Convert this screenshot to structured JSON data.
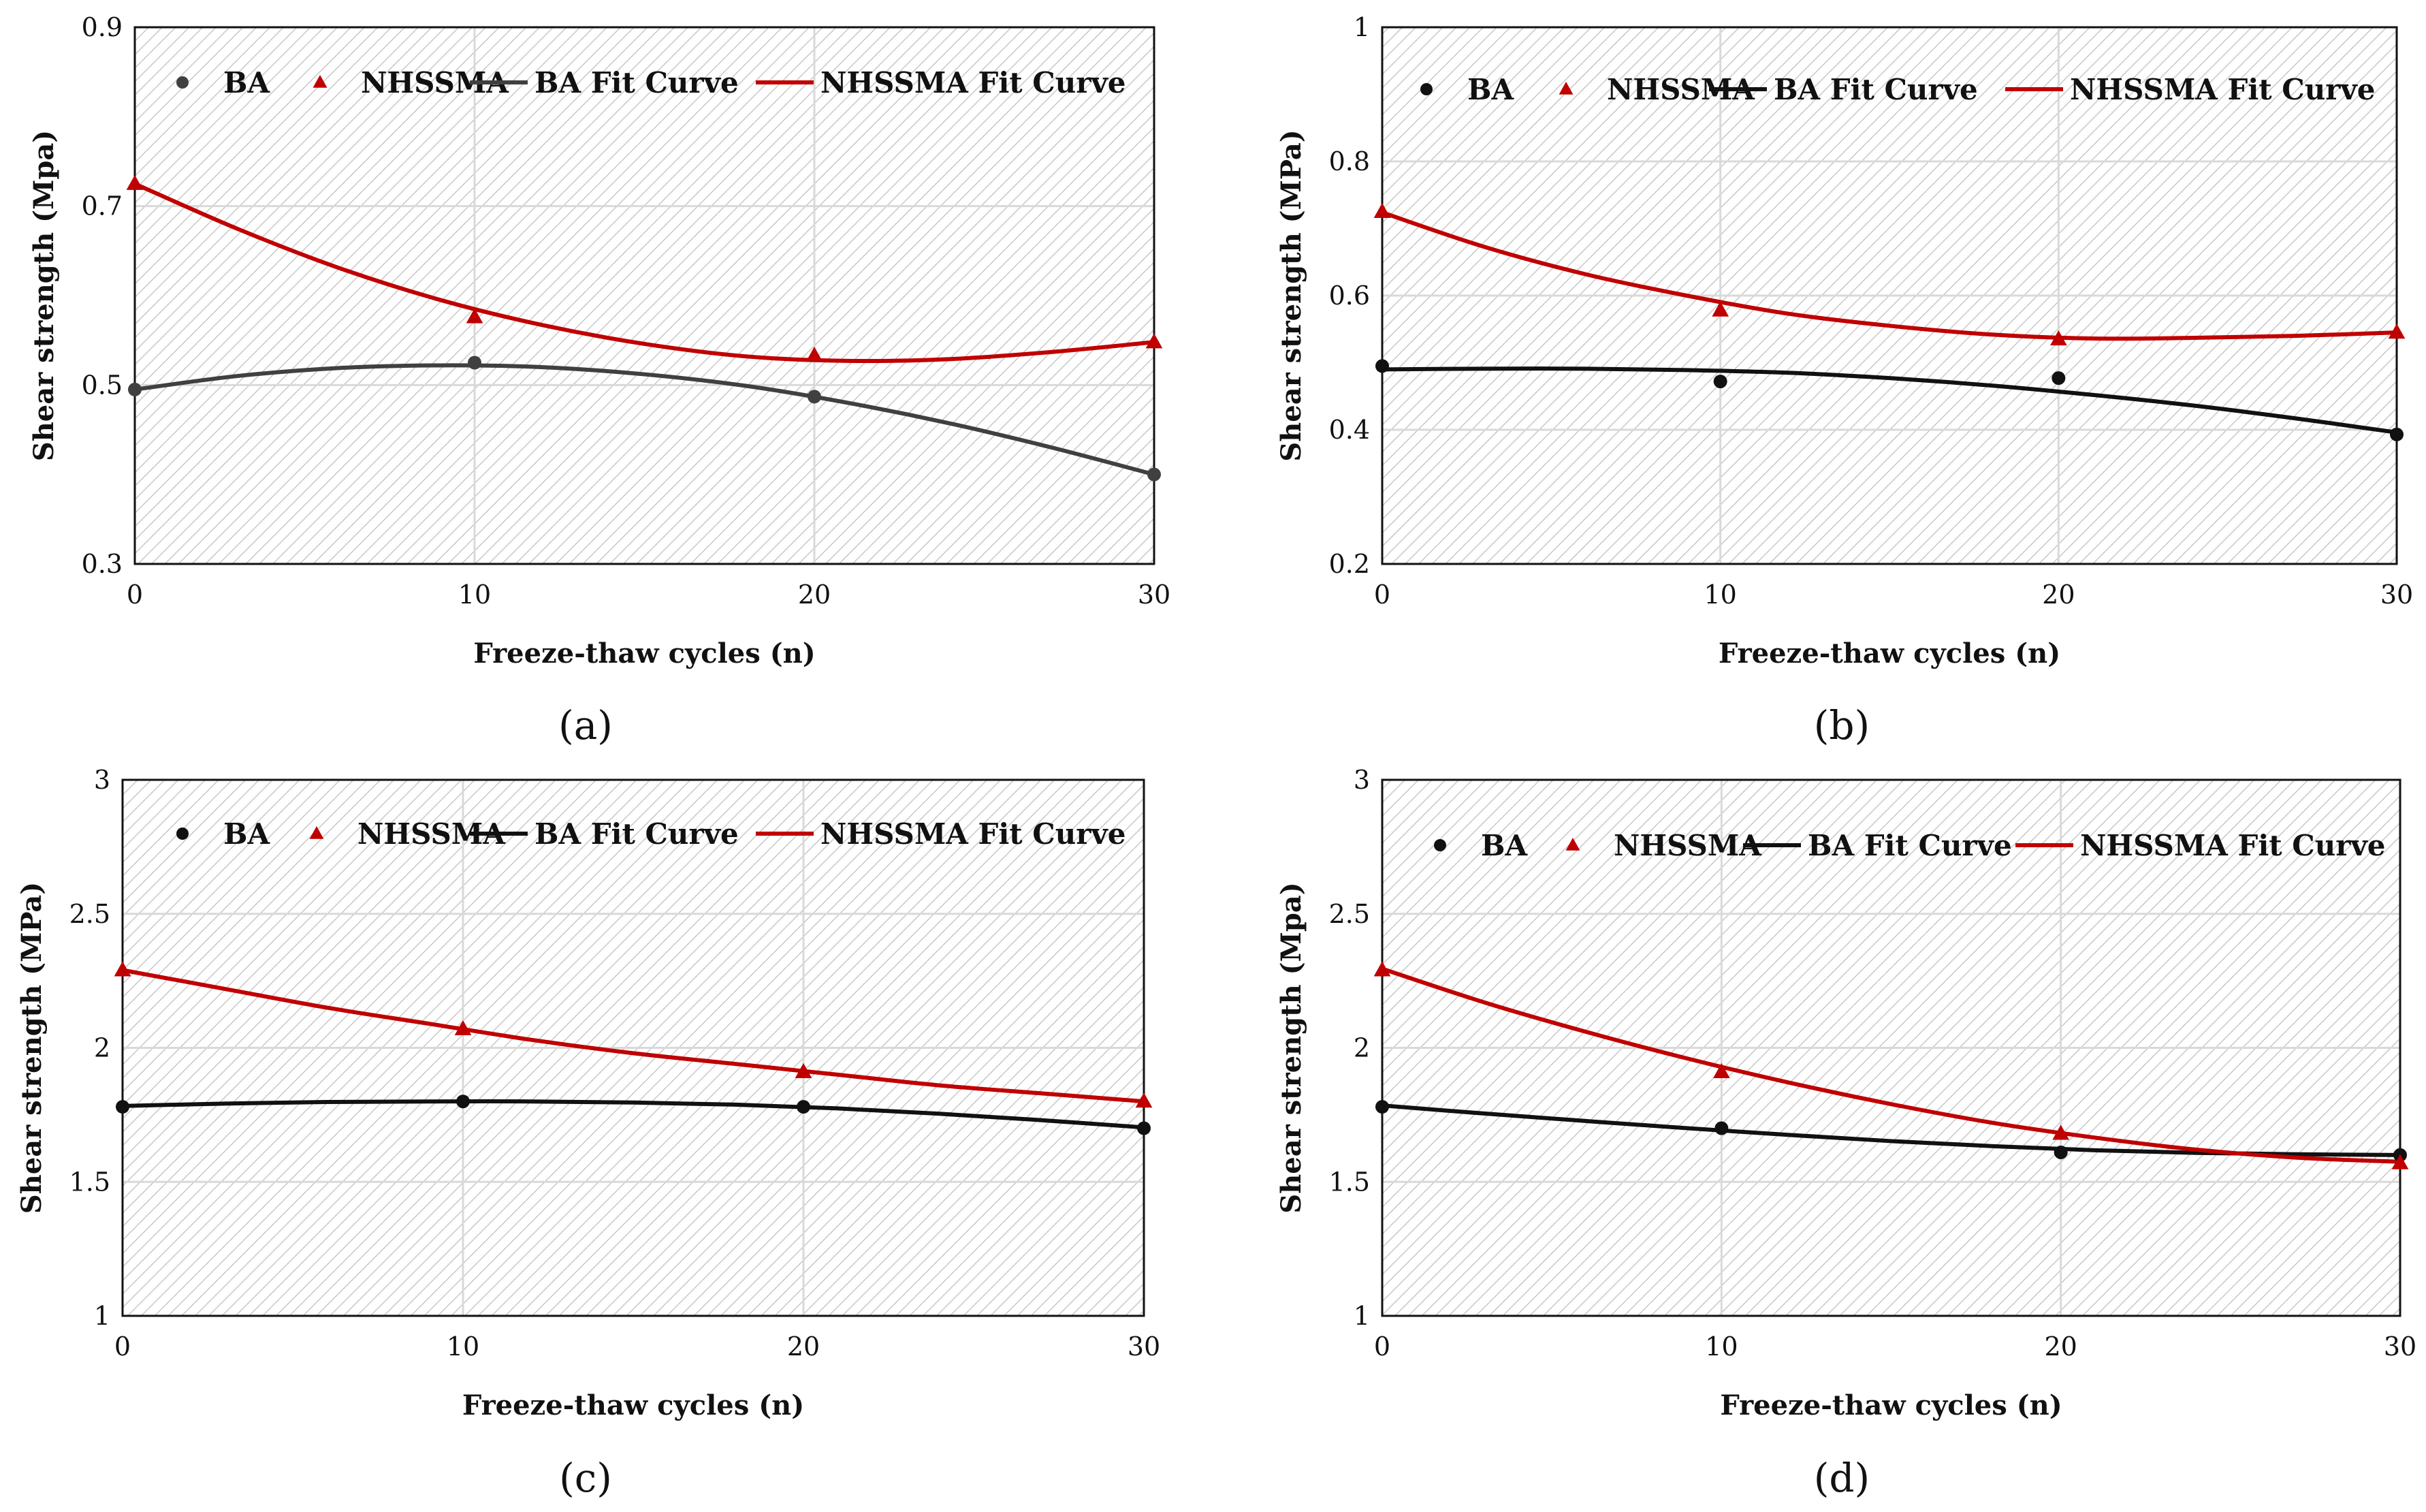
{
  "chart_data": [
    {
      "type": "scatter",
      "panel_label": "(a)",
      "xlabel": "Freeze-thaw cycles (n)",
      "ylabel": "Shear strength (Mpa)",
      "xlim": [
        0,
        30
      ],
      "ylim": [
        0.3,
        0.9
      ],
      "xticks": [
        "0",
        "10",
        "20",
        "30"
      ],
      "yticks": [
        "0.3",
        "0.5",
        "0.7",
        "0.9"
      ],
      "legend": [
        "BA",
        "NHSSMA",
        "BA Fit Curve",
        "NHSSMA Fit Curve"
      ],
      "legend_position": "top",
      "grid": true,
      "series": [
        {
          "name": "BA",
          "kind": "points",
          "color": "#404040",
          "marker": "circle",
          "x": [
            0,
            10,
            20,
            30
          ],
          "y": [
            0.495,
            0.525,
            0.487,
            0.4
          ]
        },
        {
          "name": "NHSSMA",
          "kind": "points",
          "color": "#c00000",
          "marker": "triangle",
          "x": [
            0,
            10,
            20,
            30
          ],
          "y": [
            0.725,
            0.576,
            0.533,
            0.548
          ]
        },
        {
          "name": "BA Fit Curve",
          "kind": "line",
          "color": "#404040",
          "x": [
            0,
            3,
            6,
            9,
            12,
            15,
            18,
            21,
            24,
            27,
            30
          ],
          "y": [
            0.495,
            0.51,
            0.519,
            0.522,
            0.52,
            0.512,
            0.499,
            0.48,
            0.457,
            0.43,
            0.4
          ]
        },
        {
          "name": "NHSSMA Fit Curve",
          "kind": "line",
          "color": "#c00000",
          "x": [
            0,
            3,
            6,
            9,
            12,
            15,
            18,
            21,
            24,
            27,
            30
          ],
          "y": [
            0.725,
            0.675,
            0.631,
            0.595,
            0.567,
            0.546,
            0.532,
            0.527,
            0.529,
            0.537,
            0.548
          ]
        }
      ]
    },
    {
      "type": "scatter",
      "panel_label": "(b)",
      "xlabel": "Freeze-thaw cycles (n)",
      "ylabel": "Shear strength (MPa)",
      "xlim": [
        0,
        30
      ],
      "ylim": [
        0.2,
        1.0
      ],
      "xticks": [
        "0",
        "10",
        "20",
        "30"
      ],
      "yticks": [
        "0.2",
        "0.4",
        "0.6",
        "0.8",
        "1"
      ],
      "legend": [
        "BA",
        "NHSSMA",
        "BA Fit Curve",
        "NHSSMA Fit Curve"
      ],
      "legend_position": "top",
      "grid": true,
      "series": [
        {
          "name": "BA",
          "kind": "points",
          "color": "#111111",
          "marker": "circle",
          "x": [
            0,
            10,
            20,
            30
          ],
          "y": [
            0.495,
            0.472,
            0.477,
            0.393
          ]
        },
        {
          "name": "NHSSMA",
          "kind": "points",
          "color": "#c00000",
          "marker": "triangle",
          "x": [
            0,
            10,
            20,
            30
          ],
          "y": [
            0.725,
            0.578,
            0.535,
            0.545
          ]
        },
        {
          "name": "BA Fit Curve",
          "kind": "line",
          "color": "#111111",
          "x": [
            0,
            3,
            6,
            9,
            12,
            15,
            18,
            21,
            24,
            27,
            30
          ],
          "y": [
            0.49,
            0.491,
            0.491,
            0.489,
            0.485,
            0.477,
            0.466,
            0.452,
            0.436,
            0.417,
            0.396
          ]
        },
        {
          "name": "NHSSMA Fit Curve",
          "kind": "line",
          "color": "#c00000",
          "x": [
            0,
            3,
            6,
            9,
            12,
            15,
            18,
            21,
            24,
            27,
            30
          ],
          "y": [
            0.724,
            0.673,
            0.632,
            0.6,
            0.573,
            0.555,
            0.542,
            0.536,
            0.537,
            0.54,
            0.545
          ]
        }
      ]
    },
    {
      "type": "scatter",
      "panel_label": "(c)",
      "xlabel": "Freeze-thaw cycles (n)",
      "ylabel": "Shear strength (MPa)",
      "xlim": [
        0,
        30
      ],
      "ylim": [
        1,
        3
      ],
      "xticks": [
        "0",
        "10",
        "20",
        "30"
      ],
      "yticks": [
        "1",
        "1.5",
        "2",
        "2.5",
        "3"
      ],
      "legend": [
        "BA",
        "NHSSMA",
        "BA Fit Curve",
        "NHSSMA Fit Curve"
      ],
      "legend_position": "top",
      "grid": true,
      "series": [
        {
          "name": "BA",
          "kind": "points",
          "color": "#111111",
          "marker": "circle",
          "x": [
            0,
            10,
            20,
            30
          ],
          "y": [
            1.78,
            1.8,
            1.78,
            1.7
          ]
        },
        {
          "name": "NHSSMA",
          "kind": "points",
          "color": "#c00000",
          "marker": "triangle",
          "x": [
            0,
            10,
            20,
            30
          ],
          "y": [
            2.29,
            2.07,
            1.91,
            1.8
          ]
        },
        {
          "name": "BA Fit Curve",
          "kind": "line",
          "color": "#111111",
          "x": [
            0,
            3,
            6,
            9,
            12,
            15,
            18,
            21,
            24,
            27,
            30
          ],
          "y": [
            1.783,
            1.792,
            1.798,
            1.8,
            1.8,
            1.796,
            1.788,
            1.774,
            1.754,
            1.73,
            1.703
          ]
        },
        {
          "name": "NHSSMA Fit Curve",
          "kind": "line",
          "color": "#c00000",
          "x": [
            0,
            3,
            6,
            9,
            12,
            15,
            18,
            21,
            24,
            27,
            30
          ],
          "y": [
            2.29,
            2.22,
            2.15,
            2.09,
            2.03,
            1.98,
            1.94,
            1.9,
            1.86,
            1.83,
            1.8
          ]
        }
      ]
    },
    {
      "type": "scatter",
      "panel_label": "(d)",
      "xlabel": "Freeze-thaw cycles (n)",
      "ylabel": "Shear strength (Mpa)",
      "xlim": [
        0,
        30
      ],
      "ylim": [
        1,
        3
      ],
      "xticks": [
        "0",
        "10",
        "20",
        "30"
      ],
      "yticks": [
        "1",
        "1.5",
        "2",
        "2.5",
        "3"
      ],
      "legend": [
        "BA",
        "NHSSMA",
        "BA Fit Curve",
        "NHSSMA Fit Curve"
      ],
      "legend_position": "top",
      "grid": true,
      "series": [
        {
          "name": "BA",
          "kind": "points",
          "color": "#111111",
          "marker": "circle",
          "x": [
            0,
            10,
            20,
            30
          ],
          "y": [
            1.78,
            1.7,
            1.61,
            1.6
          ]
        },
        {
          "name": "NHSSMA",
          "kind": "points",
          "color": "#c00000",
          "marker": "triangle",
          "x": [
            0,
            10,
            20,
            30
          ],
          "y": [
            2.29,
            1.91,
            1.68,
            1.57
          ]
        },
        {
          "name": "BA Fit Curve",
          "kind": "line",
          "color": "#111111",
          "x": [
            0,
            3,
            6,
            9,
            12,
            15,
            18,
            21,
            24,
            27,
            30
          ],
          "y": [
            1.785,
            1.755,
            1.727,
            1.7,
            1.675,
            1.652,
            1.633,
            1.618,
            1.608,
            1.603,
            1.6
          ]
        },
        {
          "name": "NHSSMA Fit Curve",
          "kind": "line",
          "color": "#c00000",
          "x": [
            0,
            3,
            6,
            9,
            12,
            15,
            18,
            21,
            24,
            27,
            30
          ],
          "y": [
            2.295,
            2.17,
            2.06,
            1.96,
            1.87,
            1.79,
            1.72,
            1.665,
            1.62,
            1.59,
            1.575
          ]
        }
      ]
    }
  ]
}
